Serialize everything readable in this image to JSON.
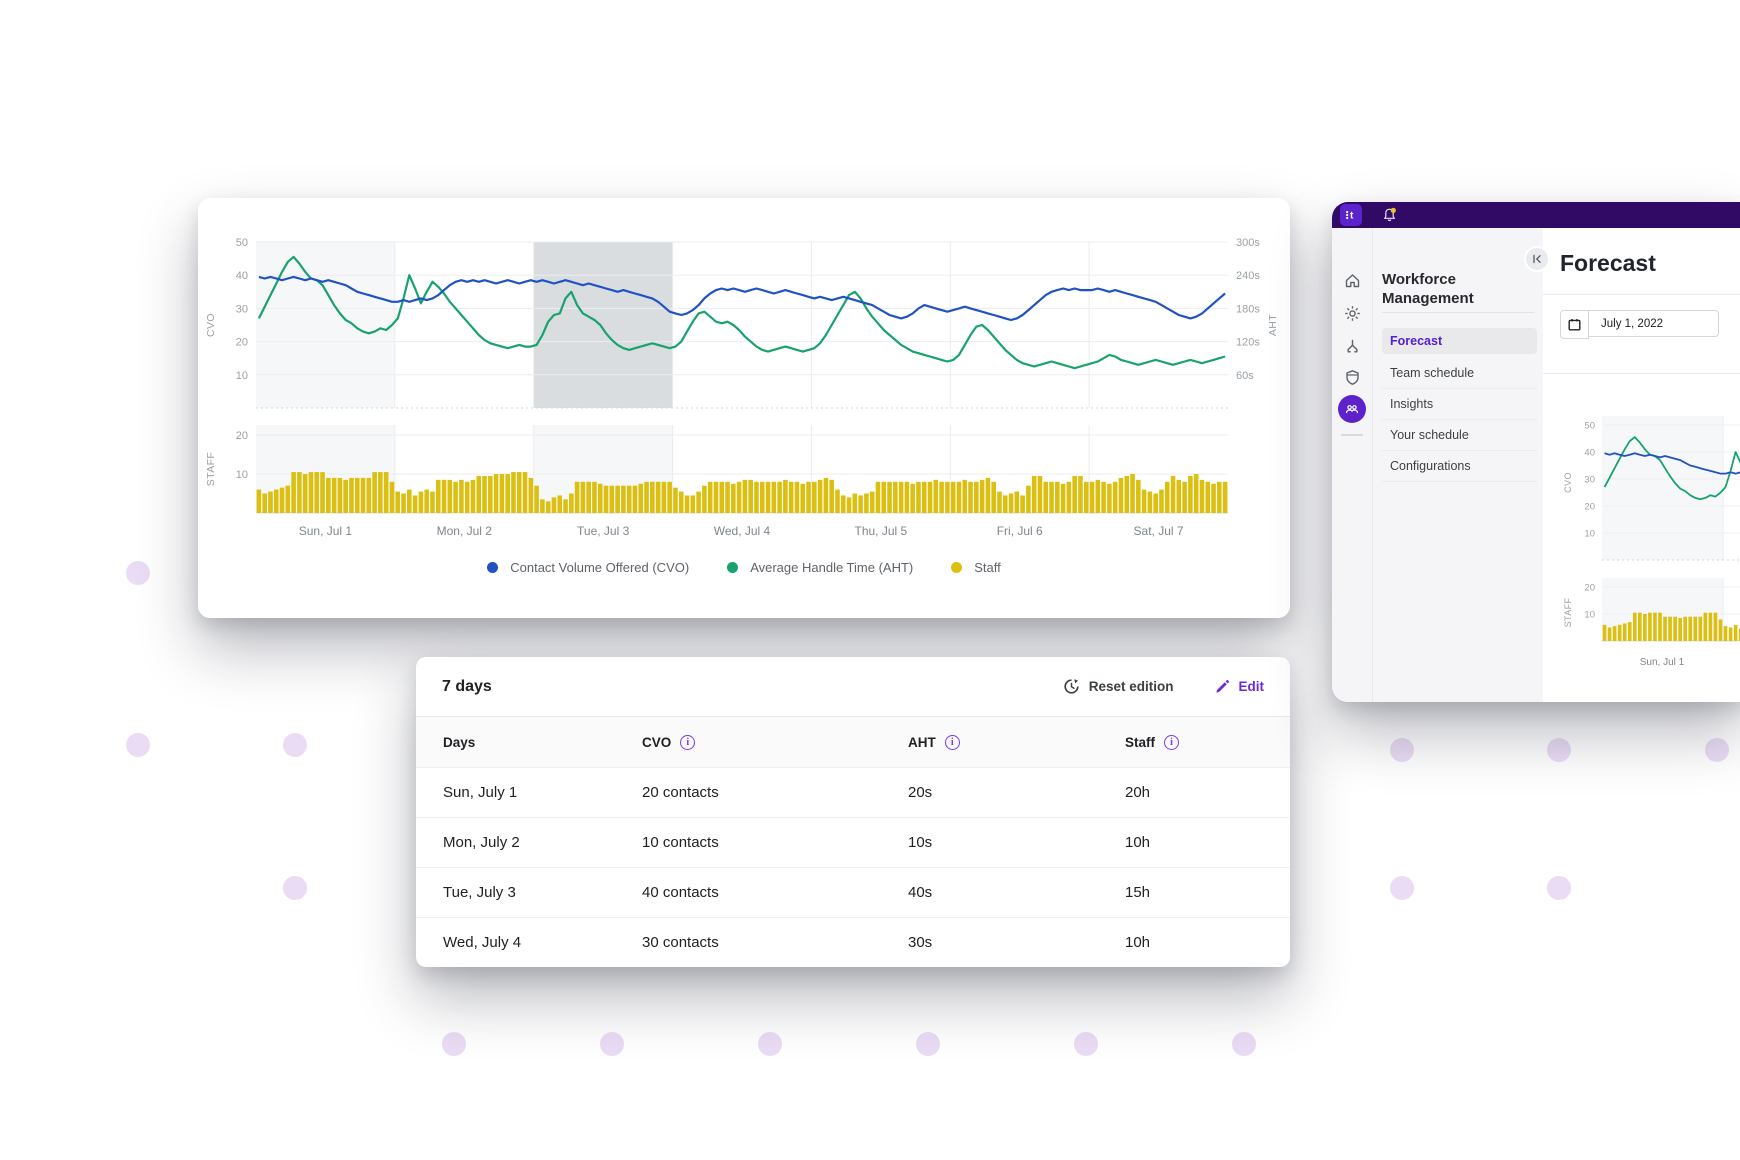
{
  "main_chart_card": {
    "cvo_axis": {
      "title": "CVO",
      "ticks": [
        50,
        40,
        30,
        20,
        10
      ]
    },
    "aht_axis": {
      "title": "AHT",
      "ticks": [
        "300s",
        "240s",
        "180s",
        "120s",
        "60s"
      ]
    },
    "staff_axis": {
      "title": "STAFF",
      "ticks": [
        20,
        10
      ]
    },
    "day_labels": [
      "Sun, Jul 1",
      "Mon, Jul 2",
      "Tue, Jul 3",
      "Wed, Jul 4",
      "Thu, Jul 5",
      "Fri, Jul 6",
      "Sat, Jul 7"
    ],
    "legend": [
      {
        "label": "Contact Volume Offered (CVO)",
        "color": "#2052c4"
      },
      {
        "label": "Average Handle Time (AHT)",
        "color": "#17a36b"
      },
      {
        "label": "Staff",
        "color": "#dcc011"
      }
    ]
  },
  "chart_data": {
    "type": "line+bar",
    "x_unit": "hour",
    "days": [
      "Sun, Jul 1",
      "Mon, Jul 2",
      "Tue, Jul 3",
      "Wed, Jul 4",
      "Thu, Jul 5",
      "Fri, Jul 6",
      "Sat, Jul 7"
    ],
    "points_per_day": 24,
    "shaded_day": "Sun, Jul 1",
    "highlighted_day": "Tue, Jul 3",
    "series": [
      {
        "name": "Contact Volume Offered (CVO)",
        "axis": "CVO",
        "range": [
          0,
          50
        ],
        "color": "#2052c4",
        "values": [
          39.5,
          39,
          39.5,
          39,
          38.5,
          39,
          39.5,
          39,
          38.5,
          39,
          38.5,
          38,
          38.5,
          38,
          37.5,
          37,
          36,
          35,
          34.5,
          34,
          33.5,
          33,
          32.5,
          32,
          32,
          32.5,
          32,
          32.5,
          33,
          32.5,
          33,
          34,
          35.5,
          37,
          38,
          38.5,
          38,
          38.5,
          38,
          38.5,
          38,
          37.5,
          38,
          38.5,
          38,
          37.5,
          38,
          38.5,
          38,
          38.5,
          38,
          37.5,
          38,
          38.5,
          38,
          37.5,
          37,
          37.5,
          37,
          36.5,
          36,
          35.5,
          35,
          35.5,
          35,
          34.5,
          34,
          33.5,
          33,
          32,
          30.5,
          29,
          28.5,
          28,
          28.5,
          29.5,
          31,
          33,
          34.5,
          35.5,
          36,
          35.5,
          36,
          35.5,
          35,
          35.5,
          36,
          35.5,
          35,
          34.5,
          35,
          35.5,
          35,
          34.5,
          34,
          33.5,
          33,
          33.5,
          33,
          32.5,
          33,
          33.5,
          33,
          32.5,
          32,
          31.5,
          31,
          30,
          29,
          28,
          27.5,
          27,
          27.5,
          28.5,
          30,
          31,
          30.5,
          30,
          29.5,
          29,
          29.5,
          30,
          30.5,
          30,
          29.5,
          29,
          28.5,
          28,
          27.5,
          27,
          26.5,
          27,
          28,
          29.5,
          31,
          32.5,
          34,
          35,
          35.5,
          36,
          35.5,
          36,
          35.5,
          35.5,
          35.5,
          36,
          35.5,
          35,
          35.5,
          35,
          34.5,
          34,
          33.5,
          33,
          32.5,
          32,
          31,
          30,
          29,
          28,
          27.5,
          27,
          27.5,
          28.5,
          30,
          31.5,
          33,
          34.5
        ]
      },
      {
        "name": "Average Handle Time (AHT)",
        "axis": "AHT",
        "unit": "seconds",
        "range": [
          0,
          300
        ],
        "color": "#17a36b",
        "values": [
          162,
          183,
          204,
          225,
          246,
          264,
          273,
          261,
          246,
          234,
          231,
          222,
          204,
          186,
          171,
          159,
          153,
          144,
          138,
          135,
          138,
          144,
          141,
          150,
          162,
          198,
          240,
          216,
          189,
          210,
          228,
          219,
          207,
          192,
          180,
          168,
          156,
          144,
          132,
          123,
          117,
          114,
          111,
          108,
          111,
          114,
          111,
          111,
          114,
          132,
          156,
          168,
          171,
          198,
          210,
          186,
          171,
          165,
          159,
          150,
          135,
          123,
          114,
          108,
          105,
          108,
          111,
          114,
          117,
          114,
          111,
          108,
          111,
          120,
          138,
          156,
          171,
          174,
          165,
          156,
          153,
          156,
          150,
          141,
          129,
          120,
          111,
          105,
          102,
          105,
          108,
          111,
          108,
          105,
          102,
          105,
          108,
          117,
          132,
          150,
          168,
          186,
          204,
          210,
          198,
          180,
          165,
          153,
          141,
          132,
          123,
          114,
          108,
          102,
          99,
          96,
          93,
          90,
          87,
          84,
          87,
          96,
          114,
          132,
          147,
          150,
          141,
          129,
          117,
          105,
          96,
          87,
          81,
          78,
          75,
          78,
          81,
          84,
          81,
          78,
          75,
          72,
          75,
          78,
          81,
          84,
          90,
          96,
          93,
          87,
          84,
          81,
          78,
          81,
          84,
          87,
          84,
          81,
          78,
          81,
          84,
          87,
          84,
          81,
          84,
          87,
          90,
          93
        ]
      },
      {
        "name": "Staff",
        "axis": "STAFF",
        "unit": "hours",
        "range": [
          0,
          20
        ],
        "color": "#dcc011",
        "values": [
          6,
          5,
          5.5,
          6,
          6.5,
          7,
          10.5,
          10.5,
          10,
          10.5,
          10.5,
          10.5,
          9,
          9,
          9,
          8.5,
          9,
          9,
          9,
          9,
          10.5,
          10.5,
          10.5,
          8,
          5.5,
          5,
          6,
          4.5,
          5.5,
          6,
          5.5,
          8.5,
          8.5,
          8.5,
          8,
          8.5,
          8,
          8.5,
          9.5,
          9.5,
          9.5,
          10,
          10,
          10,
          10.5,
          10.5,
          10.5,
          9,
          7,
          3.5,
          3,
          4,
          4.5,
          3.5,
          5,
          8,
          8,
          8,
          8,
          7.5,
          7,
          7,
          7,
          7,
          7,
          7,
          7.5,
          8,
          8,
          8,
          8,
          8,
          6.5,
          5.5,
          4.5,
          4.5,
          5.5,
          7,
          8,
          8,
          8,
          8,
          7.5,
          8,
          8.5,
          8.5,
          8,
          8,
          8,
          8,
          8,
          8.5,
          8,
          8,
          7.5,
          8,
          8,
          8.5,
          9,
          8.5,
          6,
          4.5,
          4,
          5,
          4.5,
          5,
          5.5,
          8,
          8,
          8,
          8,
          8,
          8,
          7.5,
          8,
          8,
          8,
          8.5,
          8,
          8,
          8,
          8,
          8.5,
          8,
          8,
          8.5,
          9,
          8,
          5.5,
          4.5,
          5,
          5.5,
          4.5,
          7,
          9.5,
          9.5,
          8,
          8,
          8,
          7.5,
          8,
          9.5,
          9.5,
          8,
          8,
          8.5,
          8,
          7.5,
          8,
          9,
          9.5,
          10,
          8.5,
          6,
          5.5,
          5,
          6,
          8,
          9.5,
          8.5,
          8,
          9.5,
          10,
          8.5,
          8,
          7.5,
          8,
          8
        ]
      }
    ]
  },
  "table_card": {
    "title": "7 days",
    "reset_label": "Reset edition",
    "edit_label": "Edit",
    "columns": [
      "Days",
      "CVO",
      "AHT",
      "Staff"
    ],
    "rows": [
      {
        "day": "Sun, July 1",
        "cvo": "20 contacts",
        "aht": "20s",
        "staff": "20h"
      },
      {
        "day": "Mon, July 2",
        "cvo": "10 contacts",
        "aht": "10s",
        "staff": "10h"
      },
      {
        "day": "Tue, July 3",
        "cvo": "40 contacts",
        "aht": "40s",
        "staff": "15h"
      },
      {
        "day": "Wed, July 4",
        "cvo": "30 contacts",
        "aht": "30s",
        "staff": "10h"
      }
    ]
  },
  "right_panel": {
    "app_logo": "t",
    "sidebar": {
      "title": "Workforce Management",
      "items": [
        "Forecast",
        "Team schedule",
        "Insights",
        "Your schedule",
        "Configurations"
      ],
      "active_item": "Forecast"
    },
    "page": {
      "title": "Forecast",
      "date_value": "July 1, 2022"
    },
    "mini_chart": {
      "cvo_ticks": [
        50,
        40,
        30,
        20,
        10
      ],
      "cvo_title": "CVO",
      "staff_ticks": [
        20,
        10
      ],
      "staff_title": "STAFF",
      "day_label": "Sun, Jul 1"
    }
  },
  "colors": {
    "cvo_line": "#2052c4",
    "aht_line": "#17a36b",
    "staff_bar": "#dcc011",
    "brand_header": "#310a66",
    "brand_tile": "#5b23cc",
    "active_nav": "#5520d0",
    "edit_purple": "#6d28d9",
    "highlight_band": "#d9dde0",
    "shade_band": "#f6f7f8"
  }
}
